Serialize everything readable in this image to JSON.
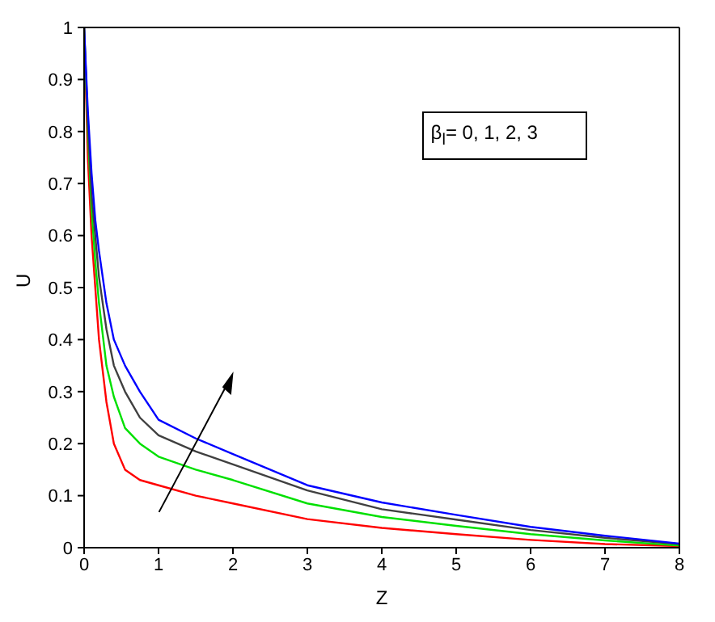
{
  "chart_data": {
    "type": "line",
    "xlabel": "Z",
    "ylabel": "U",
    "xlim": [
      0,
      8
    ],
    "ylim": [
      0,
      1
    ],
    "xticks": [
      0,
      1,
      2,
      3,
      4,
      5,
      6,
      7,
      8
    ],
    "yticks": [
      0,
      0.1,
      0.2,
      0.3,
      0.4,
      0.5,
      0.6,
      0.7,
      0.8,
      0.9,
      1
    ],
    "grid": false,
    "marker": "none",
    "line_style": "solid",
    "annotations": [
      "β$_{l}$= 0, 1, 2, 3"
    ],
    "x": [
      0,
      0.05,
      0.1,
      0.15,
      0.2,
      0.3,
      0.4,
      0.55,
      0.75,
      1,
      1.5,
      2,
      3,
      4,
      5,
      6,
      7,
      8
    ],
    "series": [
      {
        "color": "#ff0000",
        "values": [
          1,
          0.75,
          0.6,
          0.5,
          0.4,
          0.28,
          0.2,
          0.15,
          0.13,
          0.12,
          0.1,
          0.085,
          0.055,
          0.038,
          0.026,
          0.015,
          0.007,
          0.003
        ]
      },
      {
        "color": "#00e000",
        "values": [
          1,
          0.8,
          0.65,
          0.55,
          0.47,
          0.35,
          0.29,
          0.23,
          0.2,
          0.175,
          0.15,
          0.13,
          0.085,
          0.059,
          0.042,
          0.026,
          0.014,
          0.004
        ]
      },
      {
        "color": "#404040",
        "values": [
          1,
          0.82,
          0.68,
          0.6,
          0.52,
          0.42,
          0.35,
          0.3,
          0.25,
          0.216,
          0.185,
          0.16,
          0.11,
          0.074,
          0.054,
          0.034,
          0.019,
          0.007
        ]
      },
      {
        "color": "#0000ff",
        "values": [
          1,
          0.84,
          0.72,
          0.63,
          0.57,
          0.47,
          0.4,
          0.35,
          0.3,
          0.246,
          0.21,
          0.18,
          0.12,
          0.087,
          0.063,
          0.04,
          0.023,
          0.008
        ]
      }
    ]
  }
}
